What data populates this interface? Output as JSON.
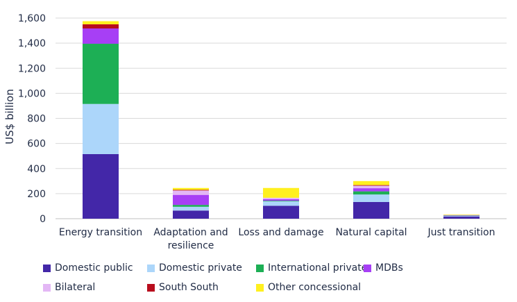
{
  "chart_data": {
    "type": "bar",
    "stacked": true,
    "ylabel": "US$ billion",
    "xlabel": "",
    "ylim": [
      0,
      1600
    ],
    "yticks": [
      0,
      200,
      400,
      600,
      800,
      1000,
      1200,
      1400,
      1600
    ],
    "ytick_labels": [
      "0",
      "200",
      "400",
      "600",
      "800",
      "1,000",
      "1,200",
      "1,400",
      "1,600"
    ],
    "grid": true,
    "legend_position": "bottom",
    "categories": [
      [
        "Energy transition"
      ],
      [
        "Adaptation and",
        "resilience"
      ],
      [
        "Loss and damage"
      ],
      [
        "Natural capital"
      ],
      [
        "Just transition"
      ]
    ],
    "series": [
      {
        "name": "Domestic public",
        "color": "#4327a8",
        "values": [
          515,
          65,
          103,
          133,
          18
        ]
      },
      {
        "name": "Domestic private",
        "color": "#acd6fa",
        "values": [
          400,
          30,
          35,
          60,
          5
        ]
      },
      {
        "name": "International private",
        "color": "#1daf55",
        "values": [
          480,
          15,
          5,
          25,
          2
        ]
      },
      {
        "name": "MDBs",
        "color": "#a73ff5",
        "values": [
          122,
          80,
          12,
          25,
          2
        ]
      },
      {
        "name": "Bilateral",
        "color": "#e3b7f5",
        "values": [
          0,
          35,
          12,
          20,
          3
        ]
      },
      {
        "name": "South South",
        "color": "#b80d1d",
        "values": [
          33,
          5,
          0,
          5,
          0
        ]
      },
      {
        "name": "Other concessional",
        "color": "#fff01f",
        "values": [
          25,
          15,
          78,
          32,
          4
        ]
      }
    ]
  }
}
